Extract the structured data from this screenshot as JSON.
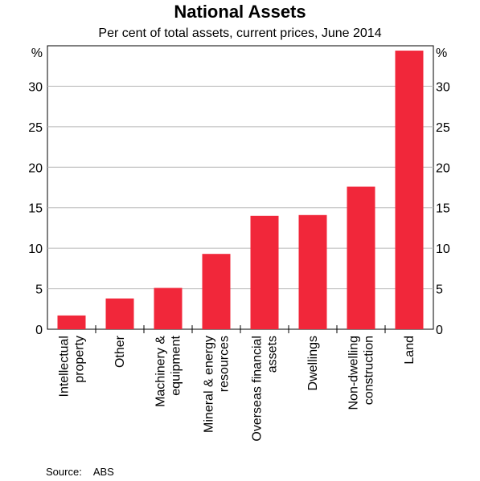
{
  "chart_data": {
    "type": "bar",
    "title": "National Assets",
    "subtitle": "Per cent of total assets, current prices, June 2014",
    "categories": [
      [
        "Intellectual",
        "property"
      ],
      [
        "Other"
      ],
      [
        "Machinery &",
        "equipment"
      ],
      [
        "Mineral & energy",
        "resources"
      ],
      [
        "Overseas financial",
        "assets"
      ],
      [
        "Dwellings"
      ],
      [
        "Non-dwelling",
        "construction"
      ],
      [
        "Land"
      ]
    ],
    "values": [
      1.7,
      3.8,
      5.1,
      9.3,
      14.0,
      14.1,
      17.6,
      34.4
    ],
    "ylim": [
      0,
      35
    ],
    "yticks": [
      0,
      5,
      10,
      15,
      20,
      25,
      30
    ],
    "yunit_left": "%",
    "yunit_right": "%",
    "grid": true,
    "bar_color": "#f1273a",
    "source_label": "Source:",
    "source": "ABS"
  }
}
